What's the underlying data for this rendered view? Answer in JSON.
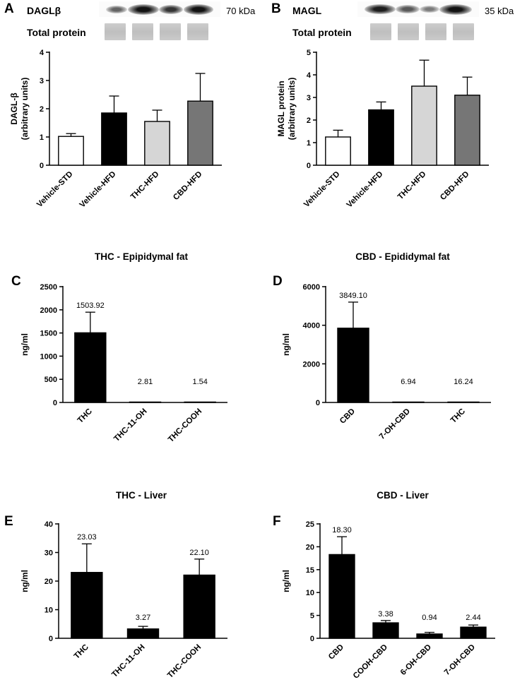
{
  "figure": {
    "background": "#ffffff",
    "panels": {
      "A": {
        "letter": "A",
        "blot": {
          "target_label": "DAGLβ",
          "weight_label": "70 kDa",
          "total_label": "Total protein"
        }
      },
      "B": {
        "letter": "B",
        "blot": {
          "target_label": "MAGL",
          "weight_label": "35 kDa",
          "total_label": "Total protein"
        }
      },
      "C": {
        "letter": "C"
      },
      "D": {
        "letter": "D"
      },
      "E": {
        "letter": "E"
      },
      "F": {
        "letter": "F"
      }
    }
  },
  "chart_data": [
    {
      "panel": "A",
      "type": "bar",
      "title": "",
      "ylabel_lines": [
        "DAGL-β",
        "(arbitrary units)"
      ],
      "categories": [
        "Vehicle-STD",
        "Vehicle-HFD",
        "THC-HFD",
        "CBD-HFD"
      ],
      "values": [
        1.02,
        1.85,
        1.55,
        2.27
      ],
      "errors": [
        0.1,
        0.6,
        0.4,
        0.98
      ],
      "ylim": [
        0,
        4
      ],
      "ytick_step": 1,
      "grid": false,
      "bar_colors": [
        "#ffffff",
        "#000000",
        "#d6d6d6",
        "#767676"
      ],
      "show_value_labels": false
    },
    {
      "panel": "B",
      "type": "bar",
      "title": "",
      "ylabel_lines": [
        "MAGL protein",
        "(arbitrary units)"
      ],
      "categories": [
        "Vehicle-STD",
        "Vehicle-HFD",
        "THC-HFD",
        "CBD-HFD"
      ],
      "values": [
        1.25,
        2.45,
        3.5,
        3.1
      ],
      "errors": [
        0.3,
        0.35,
        1.15,
        0.8
      ],
      "ylim": [
        0,
        5
      ],
      "ytick_step": 1,
      "grid": false,
      "bar_colors": [
        "#ffffff",
        "#000000",
        "#d6d6d6",
        "#767676"
      ],
      "show_value_labels": false
    },
    {
      "panel": "C",
      "type": "bar",
      "title": "THC - Epipidymal fat",
      "ylabel_lines": [
        "ng/ml"
      ],
      "categories": [
        "THC",
        "THC-11-OH",
        "THC-COOH"
      ],
      "values": [
        1503.92,
        2.81,
        1.54
      ],
      "errors": [
        445,
        0,
        0
      ],
      "value_labels": [
        "1503.92",
        "2.81",
        "1.54"
      ],
      "ylim": [
        0,
        2500
      ],
      "ytick_step": 500,
      "grid": false,
      "bar_colors": [
        "#000000",
        "#000000",
        "#000000"
      ],
      "show_value_labels": true
    },
    {
      "panel": "D",
      "type": "bar",
      "title": "CBD - Epididymal fat",
      "ylabel_lines": [
        "ng/ml"
      ],
      "categories": [
        "CBD",
        "7-OH-CBD",
        "THC"
      ],
      "values": [
        3849.1,
        6.94,
        16.24
      ],
      "errors": [
        1350,
        0,
        0
      ],
      "value_labels": [
        "3849.10",
        "6.94",
        "16.24"
      ],
      "ylim": [
        0,
        6000
      ],
      "ytick_step": 2000,
      "grid": false,
      "bar_colors": [
        "#000000",
        "#000000",
        "#000000"
      ],
      "show_value_labels": true
    },
    {
      "panel": "E",
      "type": "bar",
      "title": "THC - Liver",
      "ylabel_lines": [
        "ng/ml"
      ],
      "categories": [
        "THC",
        "THC-11-OH",
        "THC-COOH"
      ],
      "values": [
        23.03,
        3.27,
        22.1
      ],
      "errors": [
        10,
        0.9,
        5.6
      ],
      "value_labels": [
        "23.03",
        "3.27",
        "22.10"
      ],
      "ylim": [
        0,
        40
      ],
      "ytick_step": 10,
      "grid": false,
      "bar_colors": [
        "#000000",
        "#000000",
        "#000000"
      ],
      "show_value_labels": true
    },
    {
      "panel": "F",
      "type": "bar",
      "title": "CBD - Liver",
      "ylabel_lines": [
        "ng/ml"
      ],
      "categories": [
        "CBD",
        "COOH-CBD",
        "6-OH-CBD",
        "7-OH-CBD"
      ],
      "values": [
        18.3,
        3.38,
        0.94,
        2.44
      ],
      "errors": [
        3.9,
        0.5,
        0.36,
        0.46
      ],
      "value_labels": [
        "18.30",
        "3.38",
        "0.94",
        "2.44"
      ],
      "ylim": [
        0,
        25
      ],
      "ytick_step": 5,
      "grid": false,
      "bar_colors": [
        "#000000",
        "#000000",
        "#000000",
        "#000000"
      ],
      "show_value_labels": true
    }
  ]
}
